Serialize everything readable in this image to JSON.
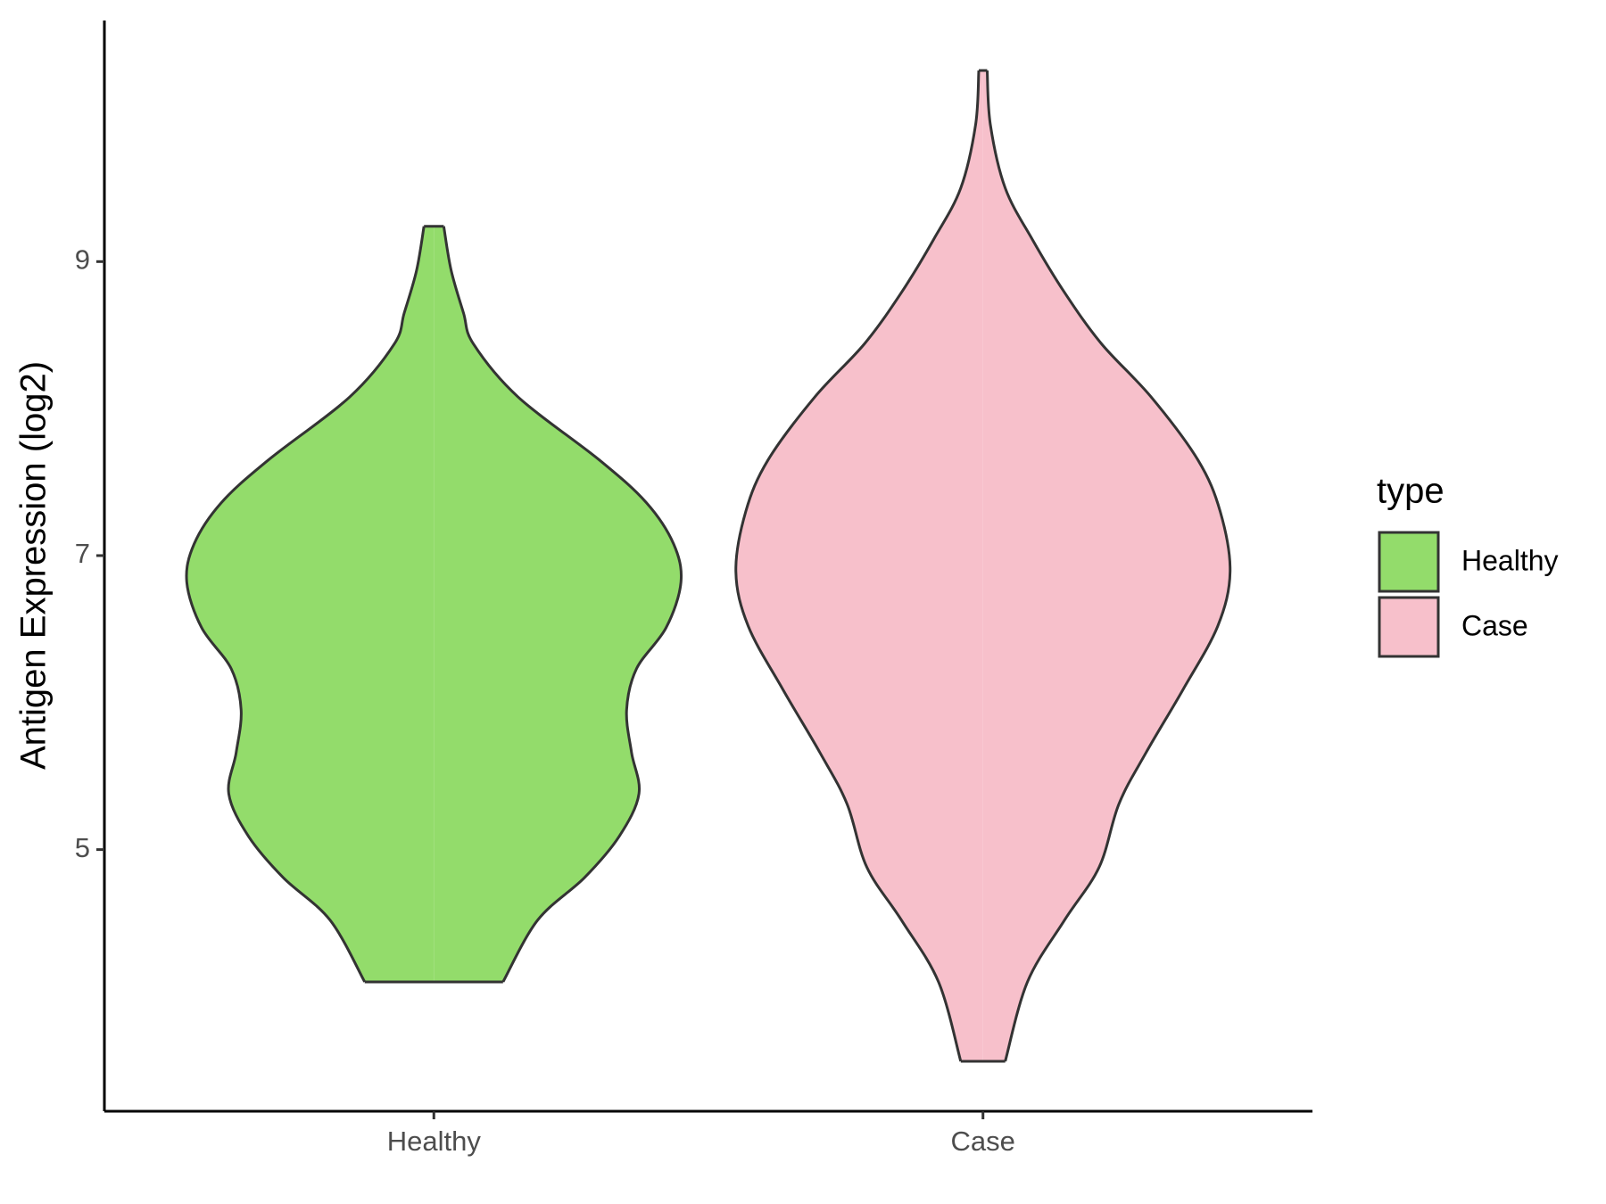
{
  "chart_data": {
    "type": "violin",
    "y_label": "Antigen Expression (log2)",
    "categories": [
      "Healthy",
      "Case"
    ],
    "legend_title": "type",
    "legend_position": "right",
    "ylim": [
      3.22,
      10.64
    ],
    "yticks": [
      5,
      7,
      9
    ],
    "series": [
      {
        "name": "Healthy",
        "color": "#93dc6b",
        "values": [
          9.24,
          8.94,
          8.65,
          8.44,
          8.08,
          7.65,
          7.36,
          7.08,
          6.82,
          6.51,
          6.23,
          5.95,
          5.66,
          5.38,
          5.09,
          4.81,
          4.52,
          4.1
        ],
        "widths": [
          0.04,
          0.07,
          0.12,
          0.16,
          0.34,
          0.67,
          0.86,
          0.97,
          1.0,
          0.94,
          0.82,
          0.78,
          0.8,
          0.83,
          0.75,
          0.61,
          0.42,
          0.28
        ]
      },
      {
        "name": "Case",
        "color": "#f7c0cb",
        "values": [
          10.3,
          9.93,
          9.5,
          9.15,
          8.79,
          8.44,
          8.08,
          7.65,
          7.3,
          6.89,
          6.52,
          6.09,
          5.66,
          5.31,
          4.88,
          4.52,
          4.1,
          3.56
        ],
        "widths": [
          0.017,
          0.03,
          0.09,
          0.2,
          0.33,
          0.48,
          0.68,
          0.87,
          0.96,
          1.0,
          0.95,
          0.81,
          0.66,
          0.55,
          0.47,
          0.33,
          0.18,
          0.09
        ]
      }
    ]
  }
}
